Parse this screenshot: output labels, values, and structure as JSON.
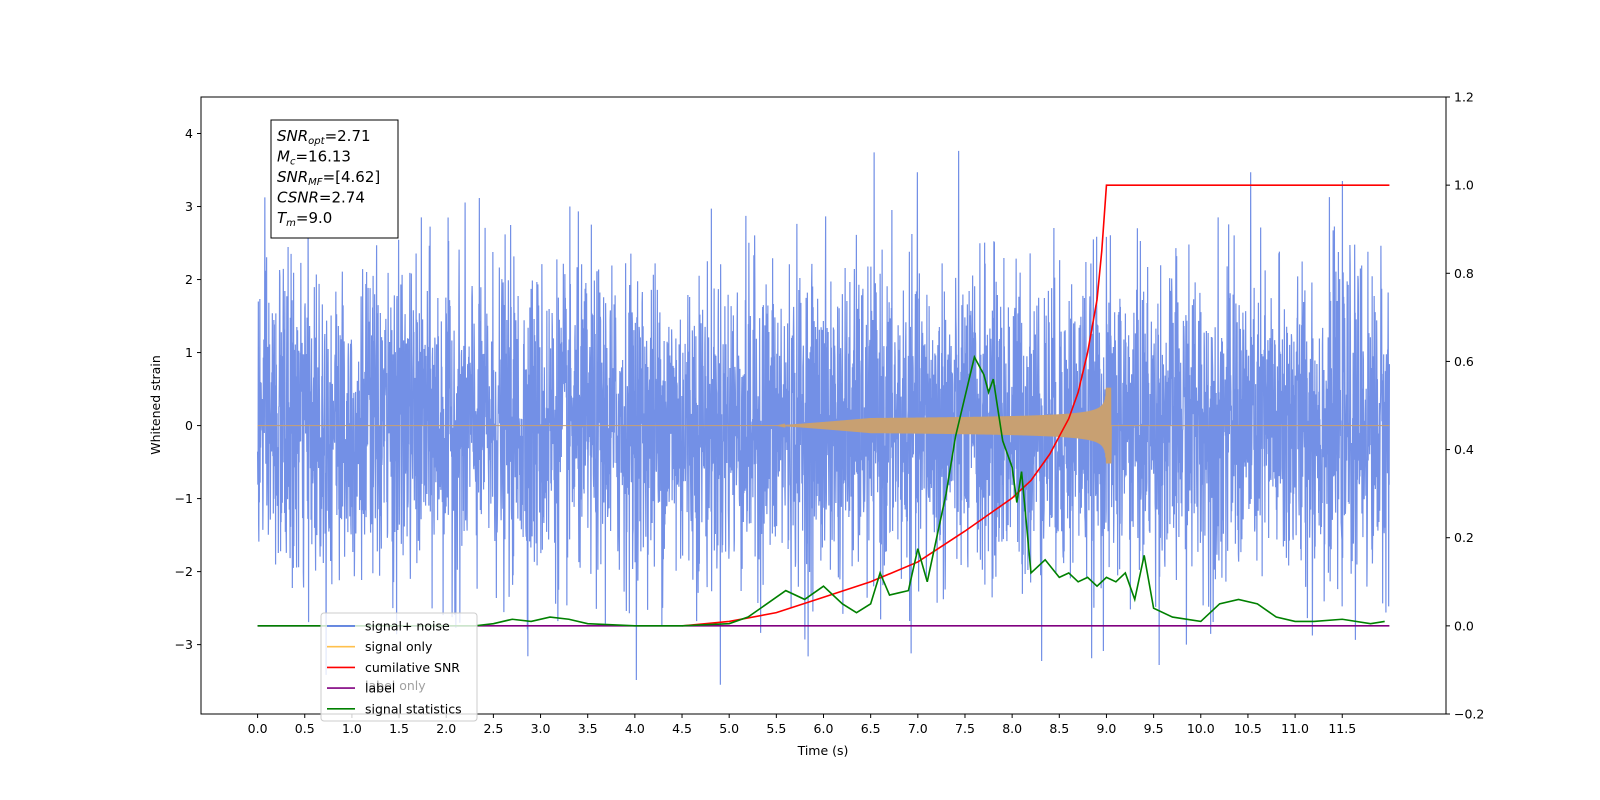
{
  "chart_data": {
    "type": "line",
    "xlabel": "Time (s)",
    "ylabel_left": "Whitened strain",
    "xlim": [
      -0.6,
      12.6
    ],
    "ylim_left": [
      -3.95,
      4.5
    ],
    "ylim_right": [
      -0.2,
      1.2
    ],
    "x_ticks": [
      "0.0",
      "0.5",
      "1.0",
      "1.5",
      "2.0",
      "2.5",
      "3.0",
      "3.5",
      "4.0",
      "4.5",
      "5.0",
      "5.5",
      "6.0",
      "6.5",
      "7.0",
      "7.5",
      "8.0",
      "8.5",
      "9.0",
      "9.5",
      "10.0",
      "10.5",
      "11.0",
      "11.5"
    ],
    "y_ticks_left": [
      "−3",
      "−2",
      "−1",
      "0",
      "1",
      "2",
      "3",
      "4"
    ],
    "y_ticks_right": [
      "−0.2",
      "0.0",
      "0.2",
      "0.4",
      "0.6",
      "0.8",
      "1.0",
      "1.2"
    ],
    "info_box": [
      {
        "base": "SNR",
        "sub": "opt",
        "rest": "=2.71"
      },
      {
        "base": "M",
        "sub": "c",
        "rest": "=16.13"
      },
      {
        "base": "SNR",
        "sub": "MF",
        "rest": "=[4.62]"
      },
      {
        "base": "CSNR",
        "sub": "",
        "rest": "=2.74"
      },
      {
        "base": "T",
        "sub": "m",
        "rest": "=9.0"
      }
    ],
    "legend": {
      "placement": "lower-left",
      "entries": [
        {
          "label": "signal+ noise",
          "color": "#4169E1"
        },
        {
          "label": "signal only",
          "color": "#FFC04D"
        },
        {
          "label": "cumilative SNR",
          "color": "#FF0000"
        },
        {
          "label": "label",
          "color": "#800080"
        },
        {
          "label": "signal statistics",
          "color": "#008000"
        }
      ],
      "hidden_text": "label only"
    },
    "series": [
      {
        "name": "signal+ noise",
        "axis": "left",
        "color": "#7390E6",
        "x_range": [
          0,
          12.0
        ],
        "noise_sigma": 1.05,
        "noise_min": -3.55,
        "noise_max": 4.12
      },
      {
        "name": "signal only",
        "axis": "left",
        "color": "#C8A072",
        "chirp": {
          "t_start": 5.5,
          "t_merge": 9.0,
          "t_end": 9.05,
          "peak_amplitude": 0.52
        }
      },
      {
        "name": "cumilative SNR",
        "axis": "right",
        "color": "#FF0000",
        "x": [
          4.5,
          5.0,
          5.5,
          6.0,
          6.5,
          7.0,
          7.5,
          7.8,
          8.0,
          8.2,
          8.4,
          8.6,
          8.7,
          8.8,
          8.9,
          8.95,
          9.0,
          9.5,
          10.0,
          10.5,
          11.0,
          11.5,
          12.0
        ],
        "values": [
          0.0,
          0.01,
          0.03,
          0.065,
          0.1,
          0.145,
          0.215,
          0.26,
          0.29,
          0.33,
          0.39,
          0.47,
          0.53,
          0.62,
          0.74,
          0.85,
          1.0,
          1.0,
          1.0,
          1.0,
          1.0,
          1.0,
          1.0
        ]
      },
      {
        "name": "label",
        "axis": "right",
        "color": "#800080",
        "x": [
          0.0,
          12.0
        ],
        "values": [
          0.0,
          0.0
        ]
      },
      {
        "name": "signal statistics",
        "axis": "right",
        "color": "#008000",
        "x": [
          0.0,
          2.3,
          2.5,
          2.7,
          2.9,
          3.1,
          3.3,
          3.5,
          4.0,
          4.5,
          5.0,
          5.2,
          5.4,
          5.6,
          5.8,
          6.0,
          6.2,
          6.35,
          6.5,
          6.6,
          6.7,
          6.8,
          6.9,
          7.0,
          7.1,
          7.2,
          7.3,
          7.4,
          7.5,
          7.6,
          7.7,
          7.75,
          7.8,
          7.9,
          8.0,
          8.05,
          8.1,
          8.2,
          8.35,
          8.5,
          8.6,
          8.7,
          8.8,
          8.9,
          9.0,
          9.1,
          9.2,
          9.3,
          9.4,
          9.5,
          9.7,
          10.0,
          10.2,
          10.4,
          10.6,
          10.8,
          11.0,
          11.2,
          11.5,
          11.8,
          11.95
        ],
        "values": [
          0.0,
          0.0,
          0.005,
          0.015,
          0.01,
          0.02,
          0.015,
          0.005,
          0.0,
          0.0,
          0.005,
          0.02,
          0.05,
          0.08,
          0.06,
          0.09,
          0.05,
          0.03,
          0.05,
          0.12,
          0.07,
          0.075,
          0.08,
          0.175,
          0.1,
          0.2,
          0.3,
          0.43,
          0.52,
          0.61,
          0.57,
          0.53,
          0.56,
          0.42,
          0.36,
          0.28,
          0.35,
          0.12,
          0.15,
          0.11,
          0.12,
          0.1,
          0.11,
          0.09,
          0.11,
          0.1,
          0.12,
          0.06,
          0.16,
          0.04,
          0.02,
          0.01,
          0.05,
          0.06,
          0.05,
          0.02,
          0.01,
          0.01,
          0.015,
          0.005,
          0.01
        ]
      }
    ]
  }
}
